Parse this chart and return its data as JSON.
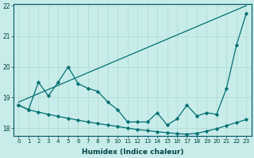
{
  "xlabel": "Humidex (Indice chaleur)",
  "xlim": [
    -0.5,
    23.5
  ],
  "ylim": [
    17.75,
    22.05
  ],
  "yticks": [
    18,
    19,
    20,
    21,
    22
  ],
  "xticks": [
    0,
    1,
    2,
    3,
    4,
    5,
    6,
    7,
    8,
    9,
    10,
    11,
    12,
    13,
    14,
    15,
    16,
    17,
    18,
    19,
    20,
    21,
    22,
    23
  ],
  "background_color": "#c8ecea",
  "grid_color": "#b0d8d0",
  "line_color": "#007070",
  "line1_x": [
    0,
    1,
    2,
    3,
    4,
    5,
    6,
    7,
    8,
    9,
    10,
    11,
    12,
    13,
    14,
    15,
    16,
    17,
    18,
    19,
    20,
    21,
    22,
    23
  ],
  "line1_y": [
    18.75,
    18.6,
    19.5,
    19.05,
    19.5,
    20.0,
    19.45,
    19.3,
    19.2,
    18.85,
    18.6,
    18.2,
    18.2,
    18.2,
    18.5,
    18.1,
    18.3,
    18.75,
    18.4,
    18.5,
    18.45,
    19.3,
    20.7,
    21.75
  ],
  "line2_x": [
    0,
    23
  ],
  "line2_y": [
    18.85,
    22.0
  ],
  "line3_x": [
    0,
    1,
    2,
    3,
    4,
    5,
    6,
    7,
    8,
    9,
    10,
    11,
    12,
    13,
    14,
    15,
    16,
    17,
    18,
    19,
    20,
    21,
    22,
    23
  ],
  "line3_y": [
    18.75,
    18.6,
    18.52,
    18.45,
    18.38,
    18.32,
    18.26,
    18.2,
    18.15,
    18.1,
    18.05,
    18.0,
    17.95,
    17.92,
    17.88,
    17.85,
    17.82,
    17.8,
    17.83,
    17.9,
    17.98,
    18.08,
    18.18,
    18.28
  ]
}
